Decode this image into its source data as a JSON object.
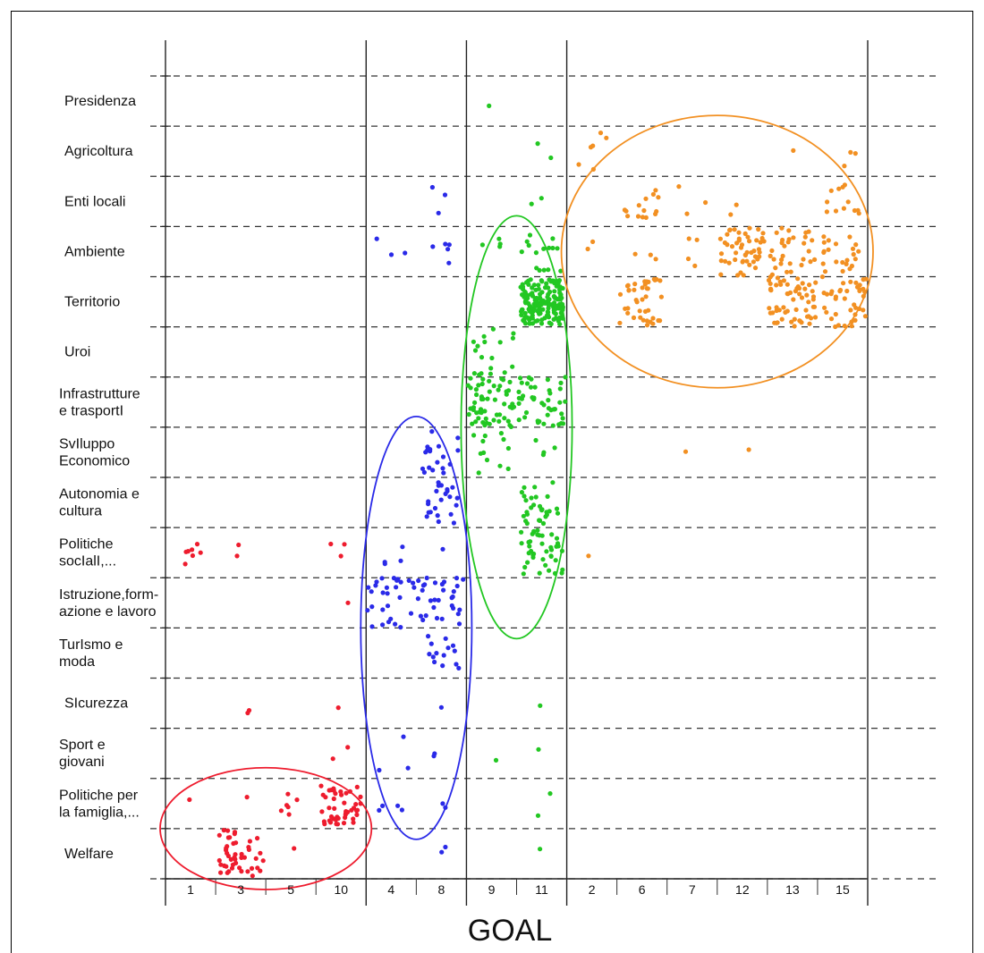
{
  "chart_data": {
    "type": "scatter",
    "xlabel": "GOAL",
    "ylabel": "",
    "title": "",
    "grid": {
      "horizontal": "dashed",
      "vertical_group_separators": "solid"
    },
    "colors": {
      "red": "#ee1c2e",
      "blue": "#2a2ae8",
      "green": "#22c722",
      "orange": "#f29022",
      "grid": "#333333"
    },
    "categories_y": [
      [
        "Presidenza"
      ],
      [
        "Agricoltura"
      ],
      [
        "Enti locali"
      ],
      [
        "Ambiente"
      ],
      [
        "Territorio"
      ],
      [
        "Uroi"
      ],
      [
        "Infrastrutture",
        "e trasportI"
      ],
      [
        "SvIluppo",
        "Economico"
      ],
      [
        "Autonomia e",
        "cultura"
      ],
      [
        "Politiche",
        "socIalI,..."
      ],
      [
        "Istruzione,form-",
        "azione e lavoro"
      ],
      [
        "TurIsmo e",
        "moda"
      ],
      [
        "SIcurezza"
      ],
      [
        "Sport e",
        "giovani"
      ],
      [
        "Politiche per",
        "la famiglia,..."
      ],
      [
        "Welfare"
      ]
    ],
    "x_ticks": [
      "1",
      "3",
      "5",
      "10",
      "4",
      "8",
      "9",
      "11",
      "2",
      "6",
      "7",
      "12",
      "13",
      "15"
    ],
    "groups": [
      {
        "color": "red",
        "goals": [
          "1",
          "3",
          "5",
          "10"
        ]
      },
      {
        "color": "blue",
        "goals": [
          "4",
          "8"
        ]
      },
      {
        "color": "green",
        "goals": [
          "9",
          "11"
        ]
      },
      {
        "color": "orange",
        "goals": [
          "2",
          "6",
          "7",
          "12",
          "13",
          "15"
        ]
      }
    ],
    "clusters": [
      {
        "color": "red",
        "goal": "1",
        "row": "Politiche",
        "n": 7,
        "spread": 0.45
      },
      {
        "color": "red",
        "goal": "3",
        "row": "Politiche",
        "n": 2,
        "spread": 0.5
      },
      {
        "color": "red",
        "goal": "10",
        "row": "Politiche",
        "n": 3,
        "spread": 0.45
      },
      {
        "color": "red",
        "goal": "10",
        "row": "Istruzione,form-",
        "n": 1,
        "spread": 0.3
      },
      {
        "color": "red",
        "goal": "3",
        "row": "SIcurezza",
        "n": 2,
        "spread": 0.4
      },
      {
        "color": "red",
        "goal": "10",
        "row": "SIcurezza",
        "n": 1,
        "spread": 0.3
      },
      {
        "color": "red",
        "goal": "10",
        "row": "Sport e",
        "n": 2,
        "spread": 0.4
      },
      {
        "color": "red",
        "goal": "1",
        "row": "Politiche per",
        "n": 1,
        "spread": 0.3
      },
      {
        "color": "red",
        "goal": "3",
        "row": "Politiche per",
        "n": 1,
        "spread": 0.3
      },
      {
        "color": "red",
        "goal": "5",
        "row": "Politiche per",
        "n": 6,
        "spread": 0.5
      },
      {
        "color": "red",
        "goal": "10",
        "row": "Politiche per",
        "n": 45,
        "spread": 0.8
      },
      {
        "color": "red",
        "goal": "3",
        "row": "Welfare",
        "n": 45,
        "spread": 0.9
      },
      {
        "color": "red",
        "goal": "5",
        "row": "Welfare",
        "n": 1,
        "spread": 0.3
      },
      {
        "color": "blue",
        "goal": "8",
        "row": "Enti locali",
        "n": 3,
        "spread": 0.6
      },
      {
        "color": "blue",
        "goal": "4",
        "row": "Ambiente",
        "n": 3,
        "spread": 0.6
      },
      {
        "color": "blue",
        "goal": "8",
        "row": "Ambiente",
        "n": 5,
        "spread": 0.7
      },
      {
        "color": "blue",
        "goal": "8",
        "row": "SvIluppo",
        "n": 18,
        "spread": 0.8
      },
      {
        "color": "blue",
        "goal": "8",
        "row": "Autonomia e",
        "n": 22,
        "spread": 0.8
      },
      {
        "color": "blue",
        "goal": "4",
        "row": "Politiche",
        "n": 4,
        "spread": 0.6
      },
      {
        "color": "blue",
        "goal": "8",
        "row": "Politiche",
        "n": 1,
        "spread": 0.3
      },
      {
        "color": "blue",
        "goal": "4",
        "row": "Istruzione,form-",
        "n": 28,
        "spread": 0.95
      },
      {
        "color": "blue",
        "goal": "8",
        "row": "Istruzione,form-",
        "n": 30,
        "spread": 0.95
      },
      {
        "color": "blue",
        "goal": "8",
        "row": "TurIsmo e",
        "n": 14,
        "spread": 0.7
      },
      {
        "color": "blue",
        "goal": "8",
        "row": "SIcurezza",
        "n": 1,
        "spread": 0.3
      },
      {
        "color": "blue",
        "goal": "4",
        "row": "Sport e",
        "n": 3,
        "spread": 0.7
      },
      {
        "color": "blue",
        "goal": "8",
        "row": "Sport e",
        "n": 2,
        "spread": 0.5
      },
      {
        "color": "blue",
        "goal": "4",
        "row": "Politiche per",
        "n": 4,
        "spread": 0.6
      },
      {
        "color": "blue",
        "goal": "8",
        "row": "Politiche per",
        "n": 2,
        "spread": 0.5
      },
      {
        "color": "blue",
        "goal": "8",
        "row": "Welfare",
        "n": 2,
        "spread": 0.3
      },
      {
        "color": "green",
        "goal": "9",
        "row": "Presidenza",
        "n": 1,
        "spread": 0.2
      },
      {
        "color": "green",
        "goal": "11",
        "row": "Agricoltura",
        "n": 2,
        "spread": 0.5
      },
      {
        "color": "green",
        "goal": "11",
        "row": "Enti locali",
        "n": 2,
        "spread": 0.5
      },
      {
        "color": "green",
        "goal": "9",
        "row": "Ambiente",
        "n": 4,
        "spread": 0.6
      },
      {
        "color": "green",
        "goal": "11",
        "row": "Ambiente",
        "n": 15,
        "spread": 0.8
      },
      {
        "color": "green",
        "goal": "11",
        "row": "Territorio",
        "n": 170,
        "spread": 0.85
      },
      {
        "color": "green",
        "goal": "9",
        "row": "Uroi",
        "n": 18,
        "spread": 0.9
      },
      {
        "color": "green",
        "goal": "9",
        "row": "Infrastrutture",
        "n": 55,
        "spread": 0.95
      },
      {
        "color": "green",
        "goal": "11",
        "row": "Infrastrutture",
        "n": 45,
        "spread": 0.95
      },
      {
        "color": "green",
        "goal": "9",
        "row": "SvIluppo",
        "n": 12,
        "spread": 0.8
      },
      {
        "color": "green",
        "goal": "11",
        "row": "SvIluppo",
        "n": 4,
        "spread": 0.6
      },
      {
        "color": "green",
        "goal": "11",
        "row": "Autonomia e",
        "n": 30,
        "spread": 0.8
      },
      {
        "color": "green",
        "goal": "11",
        "row": "Politiche",
        "n": 40,
        "spread": 0.85
      },
      {
        "color": "green",
        "goal": "11",
        "row": "SIcurezza",
        "n": 1,
        "spread": 0.3
      },
      {
        "color": "green",
        "goal": "9",
        "row": "Sport e",
        "n": 1,
        "spread": 0.3
      },
      {
        "color": "green",
        "goal": "11",
        "row": "Sport e",
        "n": 1,
        "spread": 0.3
      },
      {
        "color": "green",
        "goal": "11",
        "row": "Politiche per",
        "n": 2,
        "spread": 0.5
      },
      {
        "color": "green",
        "goal": "11",
        "row": "Welfare",
        "n": 1,
        "spread": 0.3
      },
      {
        "color": "orange",
        "goal": "2",
        "row": "Agricoltura",
        "n": 6,
        "spread": 0.8
      },
      {
        "color": "orange",
        "goal": "15",
        "row": "Agricoltura",
        "n": 3,
        "spread": 0.6
      },
      {
        "color": "orange",
        "goal": "13",
        "row": "Agricoltura",
        "n": 1,
        "spread": 0.3
      },
      {
        "color": "orange",
        "goal": "6",
        "row": "Enti locali",
        "n": 14,
        "spread": 0.7
      },
      {
        "color": "orange",
        "goal": "7",
        "row": "Enti locali",
        "n": 3,
        "spread": 0.6
      },
      {
        "color": "orange",
        "goal": "12",
        "row": "Enti locali",
        "n": 2,
        "spread": 0.5
      },
      {
        "color": "orange",
        "goal": "15",
        "row": "Enti locali",
        "n": 12,
        "spread": 0.7
      },
      {
        "color": "orange",
        "goal": "2",
        "row": "Ambiente",
        "n": 2,
        "spread": 0.5
      },
      {
        "color": "orange",
        "goal": "6",
        "row": "Ambiente",
        "n": 3,
        "spread": 0.6
      },
      {
        "color": "orange",
        "goal": "7",
        "row": "Ambiente",
        "n": 4,
        "spread": 0.6
      },
      {
        "color": "orange",
        "goal": "12",
        "row": "Ambiente",
        "n": 50,
        "spread": 0.9
      },
      {
        "color": "orange",
        "goal": "13",
        "row": "Ambiente",
        "n": 30,
        "spread": 0.9
      },
      {
        "color": "orange",
        "goal": "15",
        "row": "Ambiente",
        "n": 22,
        "spread": 0.8
      },
      {
        "color": "orange",
        "goal": "6",
        "row": "Territorio",
        "n": 40,
        "spread": 0.9
      },
      {
        "color": "orange",
        "goal": "13",
        "row": "Territorio",
        "n": 60,
        "spread": 0.95
      },
      {
        "color": "orange",
        "goal": "15",
        "row": "Territorio",
        "n": 40,
        "spread": 0.95
      },
      {
        "color": "orange",
        "goal": "7",
        "row": "SvIluppo",
        "n": 1,
        "spread": 0.3
      },
      {
        "color": "orange",
        "goal": "12",
        "row": "SvIluppo",
        "n": 1,
        "spread": 0.3
      },
      {
        "color": "orange",
        "goal": "2",
        "row": "Politiche",
        "n": 1,
        "spread": 0.3
      }
    ],
    "ellipses": [
      {
        "color": "red",
        "goal_from": "1",
        "goal_to": "10",
        "row_from": "Politiche per",
        "row_to": "Welfare"
      },
      {
        "color": "blue",
        "goal_from": "4",
        "goal_to": "8",
        "row_from": "SvIluppo",
        "row_to": "Politiche per"
      },
      {
        "color": "green",
        "goal_from": "9",
        "goal_to": "11",
        "row_from": "Ambiente",
        "row_to": "Istruzione,form-"
      },
      {
        "color": "orange",
        "goal_from": "2",
        "goal_to": "15",
        "row_from": "Agricoltura",
        "row_to": "Uroi"
      }
    ]
  }
}
